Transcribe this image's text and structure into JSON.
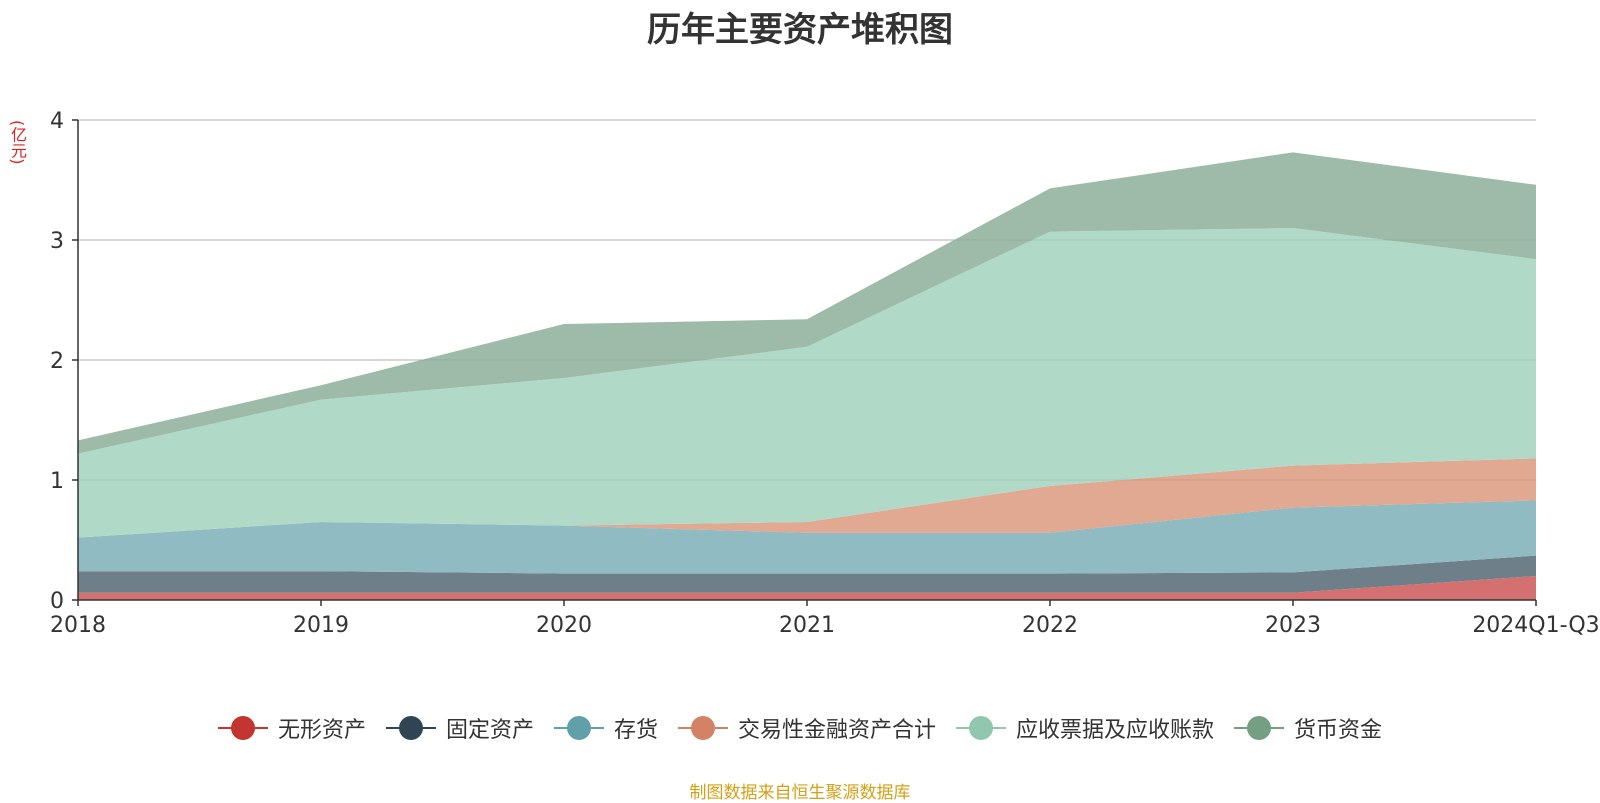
{
  "chart_data": {
    "type": "area",
    "stacked": true,
    "title": "历年主要资产堆积图",
    "ylabel": "(亿元)",
    "categories": [
      "2018",
      "2019",
      "2020",
      "2021",
      "2022",
      "2023",
      "2024Q1-Q3"
    ],
    "ylim": [
      0,
      4
    ],
    "yticks": [
      0,
      1,
      2,
      3,
      4
    ],
    "grid": true,
    "legend_position": "bottom",
    "series": [
      {
        "name": "无形资产",
        "color": "#c23531",
        "fill": "#d57070",
        "values": [
          0.06,
          0.06,
          0.06,
          0.06,
          0.06,
          0.06,
          0.2
        ]
      },
      {
        "name": "固定资产",
        "color": "#2f4554",
        "fill": "#6f7f8a",
        "values": [
          0.18,
          0.18,
          0.16,
          0.16,
          0.16,
          0.17,
          0.17
        ]
      },
      {
        "name": "存货",
        "color": "#61a0a8",
        "fill": "#90bbc2",
        "values": [
          0.28,
          0.41,
          0.4,
          0.34,
          0.34,
          0.54,
          0.46
        ]
      },
      {
        "name": "交易性金融资产合计",
        "color": "#d48265",
        "fill": "#e1a892",
        "values": [
          0,
          0,
          0,
          0.09,
          0.39,
          0.35,
          0.35
        ]
      },
      {
        "name": "应收票据及应收账款",
        "color": "#91c7ae",
        "fill": "#b1d9c7",
        "values": [
          0.7,
          1.02,
          1.23,
          1.46,
          2.12,
          1.98,
          1.66
        ]
      },
      {
        "name": "货币资金",
        "color": "#749f83",
        "fill": "#9dbba8",
        "values": [
          0.11,
          0.12,
          0.45,
          0.23,
          0.36,
          0.63,
          0.62
        ]
      }
    ]
  },
  "source_note": "制图数据来自恒生聚源数据库"
}
